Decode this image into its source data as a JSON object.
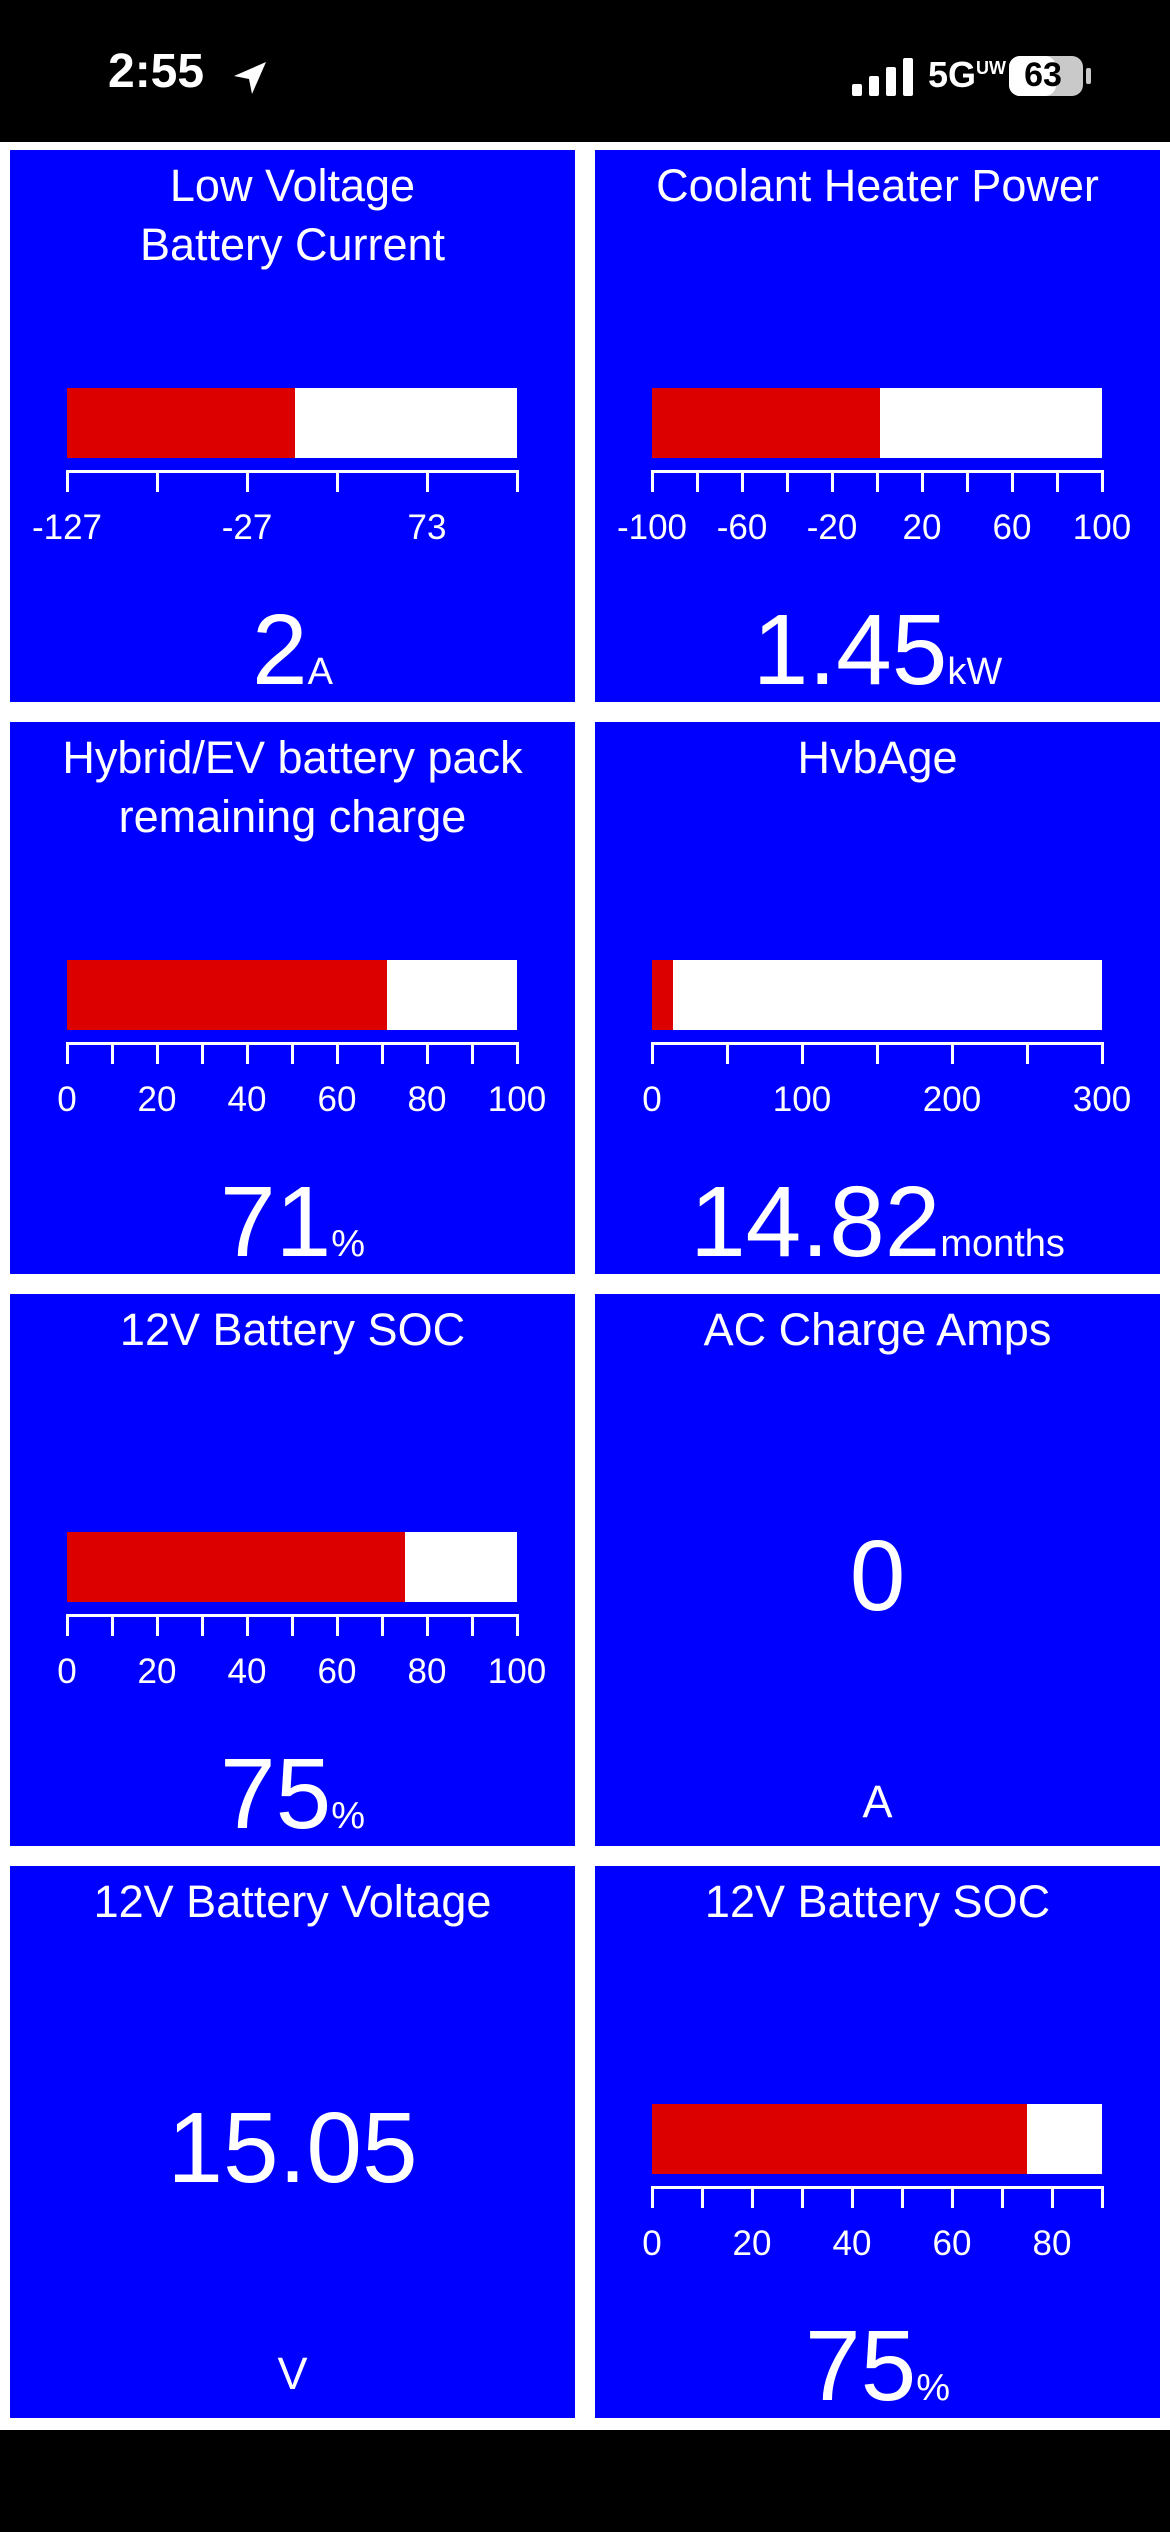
{
  "status_bar": {
    "time": "2:55",
    "network": "5G",
    "network_suffix": "UW",
    "battery": "63"
  },
  "gauges": [
    {
      "title_lines": [
        "Low Voltage",
        "Battery Current"
      ],
      "ticks": [
        "-127",
        "-27",
        "73"
      ],
      "tick_count": 6,
      "bar_min": -127,
      "bar_max": 128,
      "bar_value": 2,
      "value": "2",
      "unit": "A"
    },
    {
      "title_lines": [
        "Coolant Heater Power"
      ],
      "ticks": [
        "-100",
        "-60",
        "-20",
        "20",
        "60",
        "100"
      ],
      "tick_count": 11,
      "bar_min": -100,
      "bar_max": 100,
      "bar_value": 1.45,
      "value": "1.45",
      "unit": "kW"
    },
    {
      "title_lines": [
        "Hybrid/EV battery pack",
        "remaining charge"
      ],
      "ticks": [
        "0",
        "20",
        "40",
        "60",
        "80",
        "100"
      ],
      "tick_count": 11,
      "bar_min": 0,
      "bar_max": 100,
      "bar_value": 71,
      "value": "71",
      "unit": "%"
    },
    {
      "title_lines": [
        "HvbAge"
      ],
      "ticks": [
        "0",
        "100",
        "200",
        "300"
      ],
      "tick_count": 7,
      "bar_min": 0,
      "bar_max": 320,
      "bar_value": 14.82,
      "value": "14.82",
      "unit": "months"
    },
    {
      "title_lines": [
        "12V Battery SOC"
      ],
      "ticks": [
        "0",
        "20",
        "40",
        "60",
        "80",
        "100"
      ],
      "tick_count": 11,
      "bar_min": 0,
      "bar_max": 100,
      "bar_value": 75,
      "value": "75",
      "unit": "%"
    },
    {
      "title_lines": [
        "AC Charge Amps"
      ],
      "value": "0",
      "unit": "A"
    },
    {
      "title_lines": [
        "12V Battery Voltage"
      ],
      "value": "15.05",
      "unit": "V"
    },
    {
      "title_lines": [
        "12V Battery SOC"
      ],
      "ticks": [
        "0",
        "20",
        "40",
        "60",
        "80"
      ],
      "tick_count": 10,
      "bar_min": 0,
      "bar_max": 90,
      "bar_value": 75,
      "value": "75",
      "unit": "%"
    }
  ]
}
